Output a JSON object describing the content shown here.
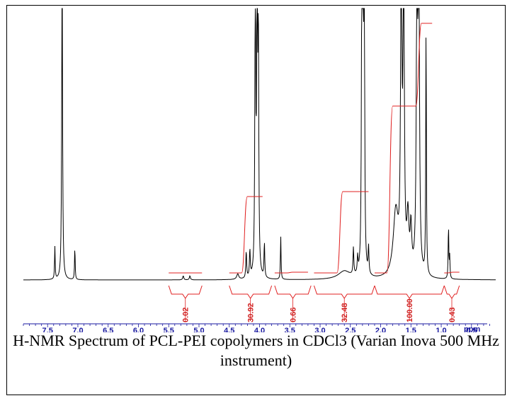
{
  "chart_data": {
    "type": "line",
    "title": "",
    "xlabel": "ppm",
    "xlim": [
      7.9,
      0.1
    ],
    "x_reversed": true,
    "xticks": [
      "7.5",
      "7.0",
      "6.5",
      "6.0",
      "5.5",
      "5.0",
      "4.5",
      "4.0",
      "3.5",
      "3.0",
      "2.5",
      "2.0",
      "1.5",
      "1.0",
      "0.5"
    ],
    "peaks": [
      {
        "ppm": 7.38,
        "height": 0.12,
        "width": 0.006
      },
      {
        "ppm": 7.26,
        "height": 1.2,
        "width": 0.008
      },
      {
        "ppm": 7.05,
        "height": 0.12,
        "width": 0.006
      },
      {
        "ppm": 5.26,
        "height": 0.015,
        "width": 0.01
      },
      {
        "ppm": 5.15,
        "height": 0.015,
        "width": 0.01
      },
      {
        "ppm": 4.36,
        "height": 0.02,
        "width": 0.02
      },
      {
        "ppm": 4.22,
        "height": 0.1,
        "width": 0.008
      },
      {
        "ppm": 4.16,
        "height": 0.1,
        "width": 0.008
      },
      {
        "ppm": 4.07,
        "height": 1.2,
        "width": 0.008
      },
      {
        "ppm": 4.04,
        "height": 1.2,
        "width": 0.008
      },
      {
        "ppm": 4.02,
        "height": 0.85,
        "width": 0.008
      },
      {
        "ppm": 3.92,
        "height": 0.13,
        "width": 0.007
      },
      {
        "ppm": 3.65,
        "height": 0.16,
        "width": 0.006
      },
      {
        "ppm": 2.6,
        "height": 0.03,
        "width": 0.12
      },
      {
        "ppm": 2.45,
        "height": 0.1,
        "width": 0.008
      },
      {
        "ppm": 2.38,
        "height": 0.06,
        "width": 0.008
      },
      {
        "ppm": 2.31,
        "height": 1.2,
        "width": 0.008
      },
      {
        "ppm": 2.29,
        "height": 1.2,
        "width": 0.008
      },
      {
        "ppm": 2.27,
        "height": 0.95,
        "width": 0.008
      },
      {
        "ppm": 2.2,
        "height": 0.1,
        "width": 0.008
      },
      {
        "ppm": 1.75,
        "height": 0.24,
        "width": 0.05
      },
      {
        "ppm": 1.66,
        "height": 1.2,
        "width": 0.012
      },
      {
        "ppm": 1.62,
        "height": 1.2,
        "width": 0.012
      },
      {
        "ppm": 1.55,
        "height": 0.2,
        "width": 0.02
      },
      {
        "ppm": 1.5,
        "height": 0.16,
        "width": 0.015
      },
      {
        "ppm": 1.4,
        "height": 1.2,
        "width": 0.012
      },
      {
        "ppm": 1.37,
        "height": 1.2,
        "width": 0.012
      },
      {
        "ppm": 1.25,
        "height": 0.95,
        "width": 0.006
      },
      {
        "ppm": 0.88,
        "height": 0.2,
        "width": 0.006
      },
      {
        "ppm": 0.86,
        "height": 0.08,
        "width": 0.006
      }
    ],
    "integrals": [
      {
        "label": "0.02",
        "from": 5.5,
        "to": 4.95
      },
      {
        "label": "30.92",
        "from": 4.5,
        "to": 3.8
      },
      {
        "label": "0.66",
        "from": 3.75,
        "to": 3.15
      },
      {
        "label": "32.48",
        "from": 3.1,
        "to": 2.1
      },
      {
        "label": "100.00",
        "from": 2.1,
        "to": 0.95
      },
      {
        "label": "0.43",
        "from": 0.95,
        "to": 0.7
      }
    ],
    "colors": {
      "spectrum": "#000000",
      "integral": "#e02020",
      "axis": "#1a1aa0"
    }
  },
  "caption": "H-NMR Spectrum of PCL-PEI copolymers in CDCl3 (Varian Inova 500 MHz instrument)"
}
